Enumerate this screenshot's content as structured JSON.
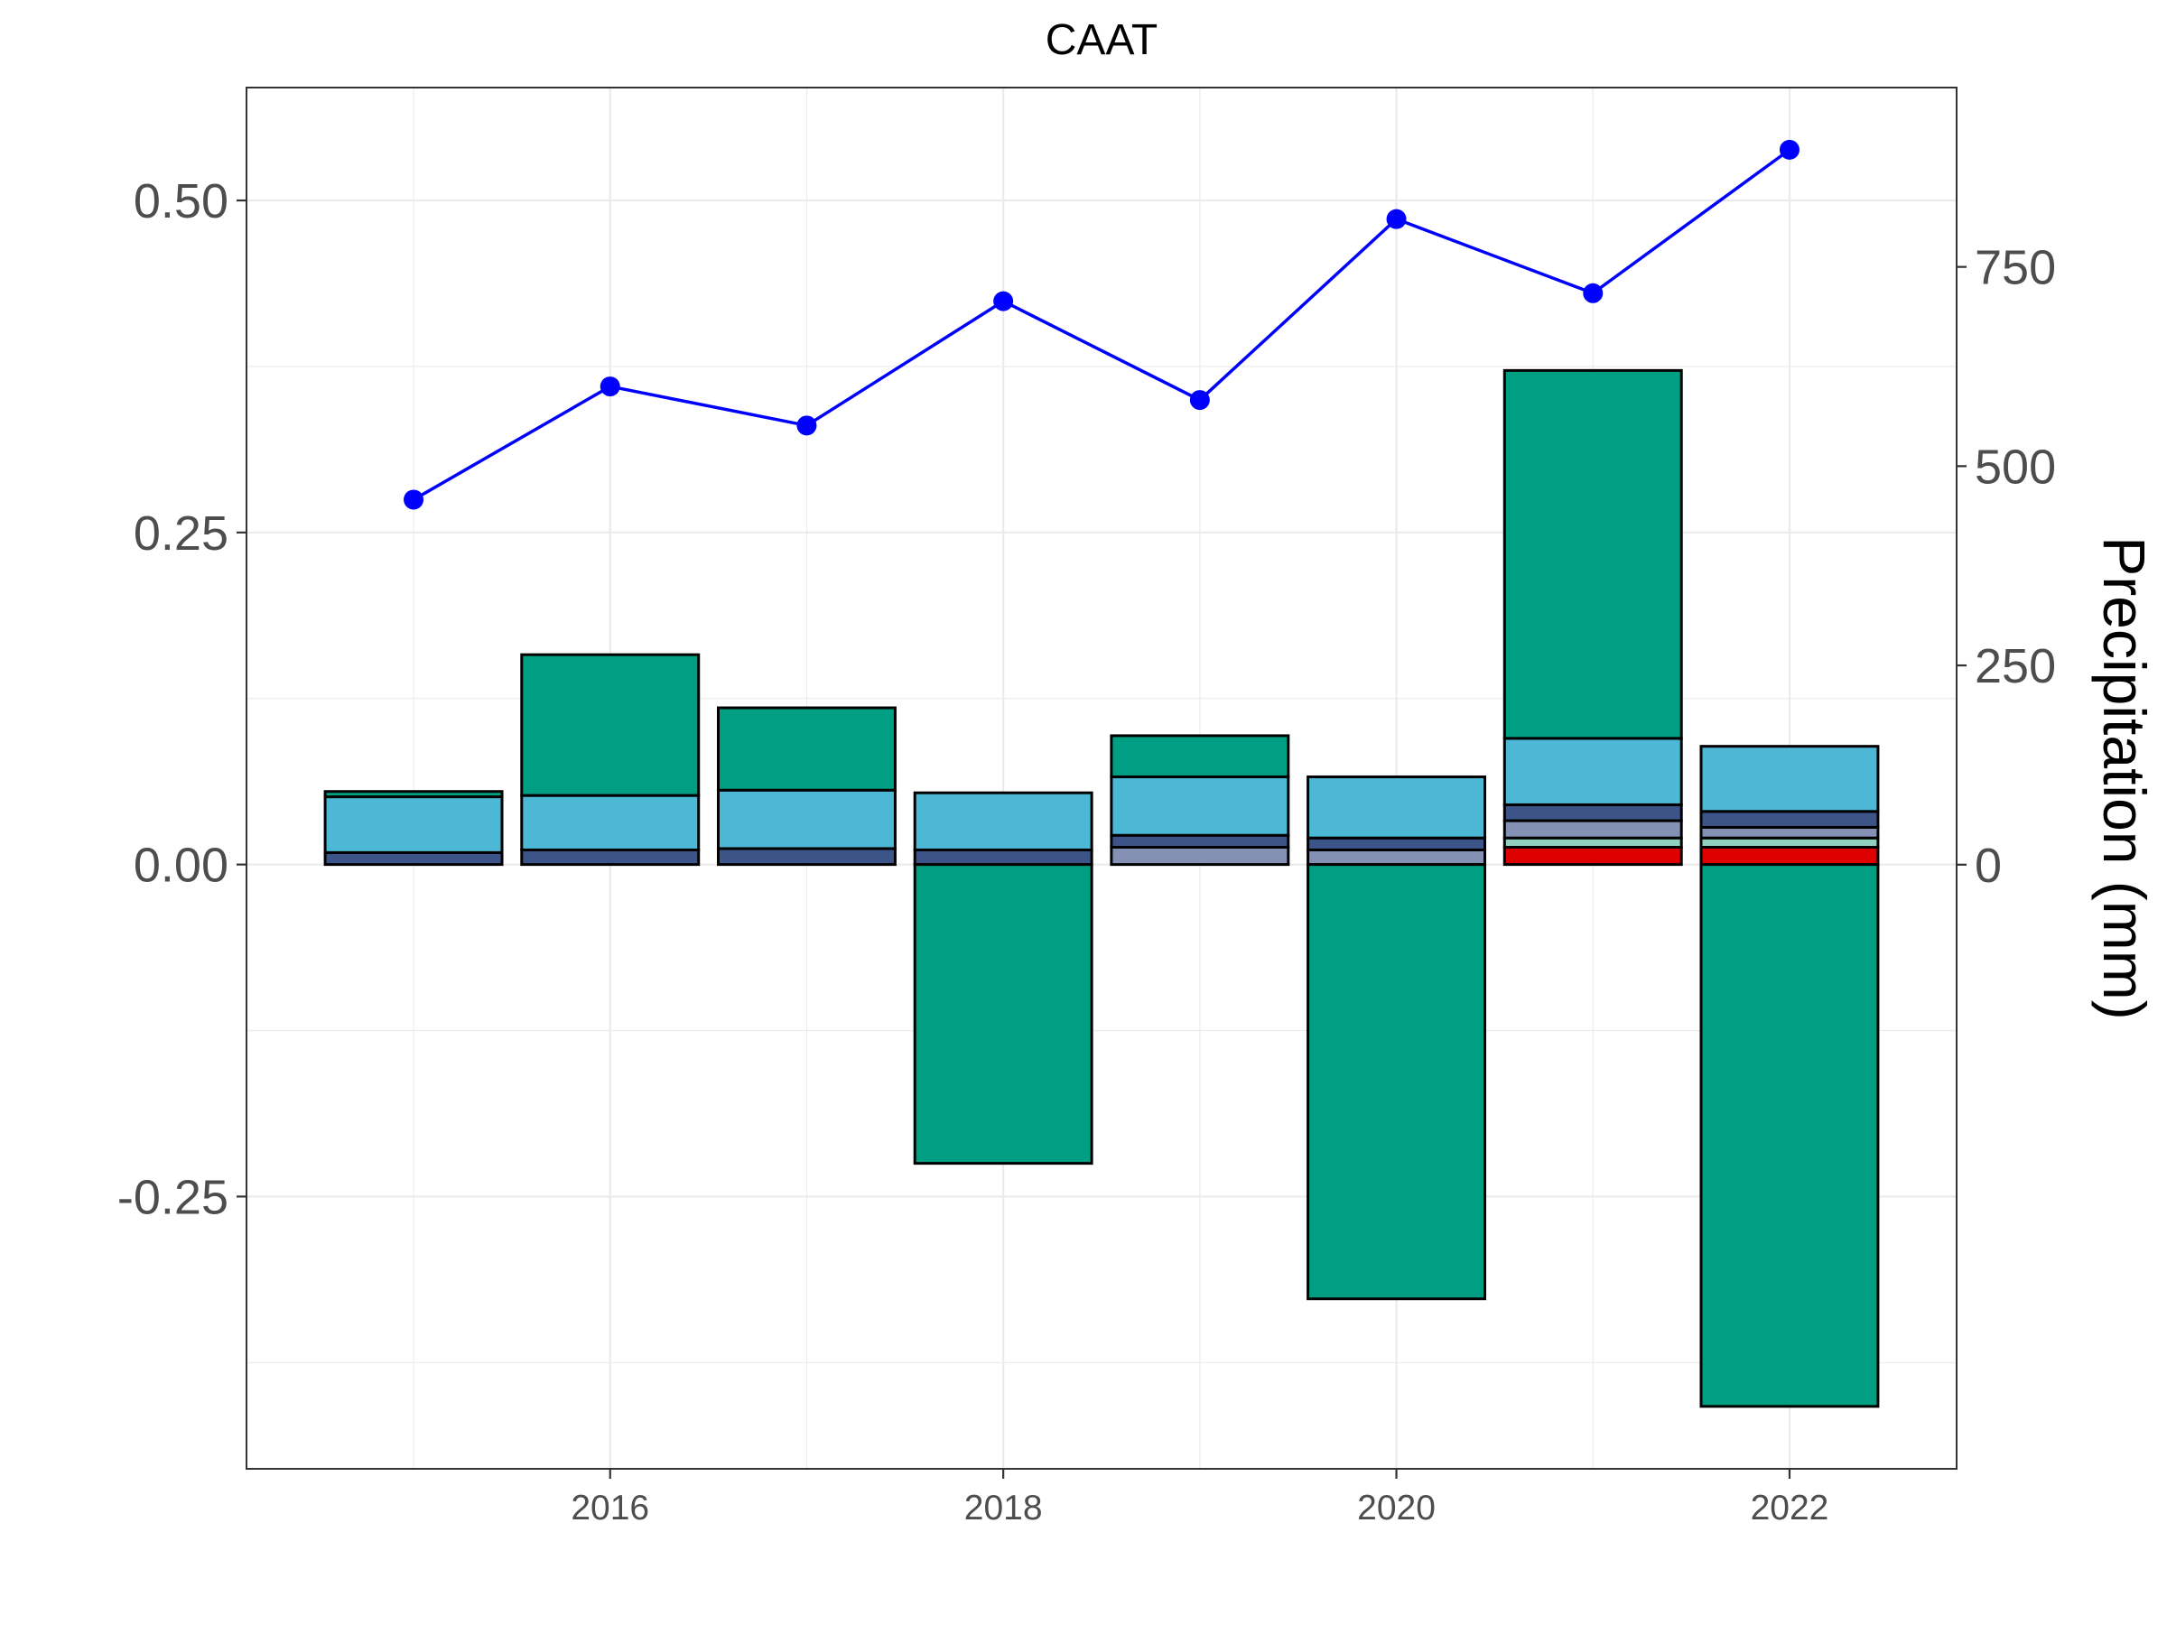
{
  "chart_data": {
    "type": "bar",
    "title": "CAAT",
    "years": [
      2015,
      2016,
      2017,
      2018,
      2019,
      2020,
      2021,
      2022
    ],
    "x_ticks": [
      2016,
      2018,
      2020,
      2022
    ],
    "ylim_left": [
      -0.455,
      0.585
    ],
    "yticks_left": [
      "0.50",
      "0.25",
      "0.00",
      "-0.25"
    ],
    "ylim_right": [
      -758,
      975
    ],
    "yticks_right": [
      750,
      500,
      250,
      0
    ],
    "ylabel_right": "Precipitation (mm)",
    "xlim": [
      2014.15,
      2022.85
    ],
    "grid": true,
    "bar_colors": {
      "green": "#009E82",
      "cyan": "#4DB8D5",
      "navy": "#3C5488",
      "slate": "#8491B4",
      "mint": "#91D1C2",
      "red": "#DC0000"
    },
    "stacks": [
      {
        "year": 2015,
        "segments": [
          {
            "color": "navy",
            "from": 0.0,
            "to": 0.009
          },
          {
            "color": "cyan",
            "from": 0.009,
            "to": 0.051
          },
          {
            "color": "green",
            "from": 0.051,
            "to": 0.055
          }
        ]
      },
      {
        "year": 2016,
        "segments": [
          {
            "color": "navy",
            "from": 0.0,
            "to": 0.011
          },
          {
            "color": "cyan",
            "from": 0.011,
            "to": 0.052
          },
          {
            "color": "green",
            "from": 0.052,
            "to": 0.158
          }
        ]
      },
      {
        "year": 2017,
        "segments": [
          {
            "color": "navy",
            "from": 0.0,
            "to": 0.012
          },
          {
            "color": "cyan",
            "from": 0.012,
            "to": 0.056
          },
          {
            "color": "green",
            "from": 0.056,
            "to": 0.118
          }
        ]
      },
      {
        "year": 2018,
        "segments": [
          {
            "color": "navy",
            "from": 0.0,
            "to": 0.011
          },
          {
            "color": "cyan",
            "from": 0.011,
            "to": 0.054
          },
          {
            "color": "green",
            "from": 0.0,
            "to": -0.225
          }
        ]
      },
      {
        "year": 2019,
        "segments": [
          {
            "color": "slate",
            "from": 0.0,
            "to": 0.013
          },
          {
            "color": "navy",
            "from": 0.013,
            "to": 0.022
          },
          {
            "color": "cyan",
            "from": 0.022,
            "to": 0.066
          },
          {
            "color": "green",
            "from": 0.066,
            "to": 0.097
          }
        ]
      },
      {
        "year": 2020,
        "segments": [
          {
            "color": "slate",
            "from": 0.0,
            "to": 0.011
          },
          {
            "color": "navy",
            "from": 0.011,
            "to": 0.02
          },
          {
            "color": "cyan",
            "from": 0.02,
            "to": 0.066
          },
          {
            "color": "green",
            "from": 0.0,
            "to": -0.327
          }
        ]
      },
      {
        "year": 2021,
        "segments": [
          {
            "color": "red",
            "from": 0.0,
            "to": 0.013
          },
          {
            "color": "mint",
            "from": 0.013,
            "to": 0.02
          },
          {
            "color": "slate",
            "from": 0.02,
            "to": 0.033
          },
          {
            "color": "navy",
            "from": 0.033,
            "to": 0.045
          },
          {
            "color": "cyan",
            "from": 0.045,
            "to": 0.095
          },
          {
            "color": "green",
            "from": 0.095,
            "to": 0.372
          }
        ]
      },
      {
        "year": 2022,
        "segments": [
          {
            "color": "red",
            "from": 0.0,
            "to": 0.013
          },
          {
            "color": "mint",
            "from": 0.013,
            "to": 0.02
          },
          {
            "color": "slate",
            "from": 0.02,
            "to": 0.028
          },
          {
            "color": "navy",
            "from": 0.028,
            "to": 0.04
          },
          {
            "color": "cyan",
            "from": 0.04,
            "to": 0.089
          },
          {
            "color": "green",
            "from": 0.0,
            "to": -0.408
          }
        ]
      }
    ],
    "precipitation_series": {
      "color": "#0000FF",
      "x": [
        2015,
        2016,
        2017,
        2018,
        2019,
        2020,
        2021,
        2022
      ],
      "y": [
        458,
        600,
        551,
        707,
        583,
        810,
        717,
        897
      ]
    }
  }
}
